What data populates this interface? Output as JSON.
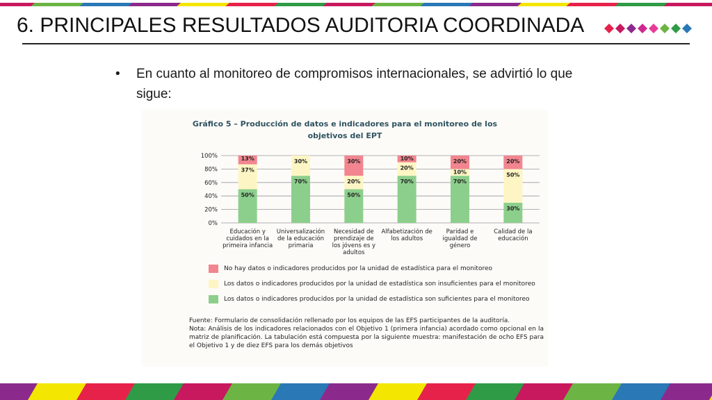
{
  "slide": {
    "title": "6. PRINCIPALES RESULTADOS AUDITORIA COORDINADA",
    "bullet": "•",
    "bullet_text": "En cuanto al monitoreo de compromisos internacionales, se advirtió lo que sigue:",
    "diamond_colors": [
      "#e6224b",
      "#c8185e",
      "#8b2a8c",
      "#d0268f",
      "#e63d96",
      "#6cb545",
      "#2f9b46",
      "#2a78b6"
    ],
    "stripe_colors": [
      "#c8185e",
      "#6cb545",
      "#2a78b6",
      "#8b2a8c",
      "#f3e600",
      "#e6224b",
      "#2f9b46"
    ]
  },
  "figure": {
    "title_line1": "Gráfico 5 – Producción de datos e indicadores para el monitoreo de los",
    "title_line2": "objetivos del EPT",
    "source_line": "Fuente: Formulario de consolidación rellenado por los equipos de las EFS participantes de la auditoría.",
    "note": "Nota: Análisis de los indicadores relacionados con el Objetivo 1 (primera infancia) acordado como opcional en la matriz de planificación. La tabulación está compuesta por la siguiente muestra: manifestación de ocho EFS para el Objetivo 1 y de diez EFS para los demás objetivos"
  },
  "chart_data": {
    "type": "bar",
    "stacked": true,
    "categories": [
      [
        "Educación y",
        "cuidados en la",
        "primeira infancia"
      ],
      [
        "Universalización",
        "de la educación",
        "primaria"
      ],
      [
        "Necesidad de",
        "prendizaje de",
        "los jóvens es y",
        "adultos"
      ],
      [
        "Alfabetización de",
        "los adultos"
      ],
      [
        "Paridad e",
        "igualdad de",
        "género"
      ],
      [
        "Calidad de la",
        "educación"
      ]
    ],
    "series": [
      {
        "name": "Los datos o indicadores producidos por la unidad de estadística son suficientes para el monitoreo",
        "color": "#8ccf8c",
        "values": [
          50,
          70,
          50,
          70,
          70,
          30
        ],
        "labels": [
          "50%",
          "70%",
          "50%",
          "70%",
          "70%",
          "30%"
        ]
      },
      {
        "name": "Los datos o indicadores producidos por la unidad de estadística son insuficientes para el monitoreo",
        "color": "#fdf6c4",
        "values": [
          37,
          30,
          20,
          20,
          10,
          50
        ],
        "labels": [
          "37%",
          "30%",
          "20%",
          "20%",
          "10%",
          "50%"
        ]
      },
      {
        "name": "No hay datos o indicadores producidos por la unidad de estadística para el monitoreo",
        "color": "#f2858f",
        "values": [
          13,
          0,
          30,
          10,
          20,
          20
        ],
        "labels": [
          "13%",
          "",
          "30%",
          "10%",
          "20%",
          "20%"
        ]
      }
    ],
    "legend_order": [
      2,
      1,
      0
    ],
    "yticks": [
      "0%",
      "20%",
      "40%",
      "60%",
      "80%",
      "100%"
    ],
    "ylim": [
      0,
      100
    ],
    "grid": true,
    "legend": "bottom"
  }
}
